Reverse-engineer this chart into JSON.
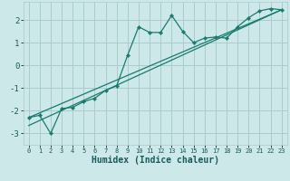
{
  "xlabel": "Humidex (Indice chaleur)",
  "bg_color": "#cce8e8",
  "grid_color": "#aacccc",
  "line_color": "#1a7a6e",
  "xlim": [
    -0.5,
    23.5
  ],
  "ylim": [
    -3.5,
    2.8
  ],
  "yticks": [
    -3,
    -2,
    -1,
    0,
    1,
    2
  ],
  "xticks": [
    0,
    1,
    2,
    3,
    4,
    5,
    6,
    7,
    8,
    9,
    10,
    11,
    12,
    13,
    14,
    15,
    16,
    17,
    18,
    19,
    20,
    21,
    22,
    23
  ],
  "main_x": [
    0,
    1,
    2,
    3,
    4,
    5,
    6,
    7,
    8,
    9,
    10,
    11,
    12,
    13,
    14,
    15,
    16,
    17,
    18,
    19,
    20,
    21,
    22,
    23
  ],
  "main_y": [
    -2.3,
    -2.2,
    -3.0,
    -1.9,
    -1.85,
    -1.6,
    -1.45,
    -1.1,
    -0.9,
    0.45,
    1.7,
    1.45,
    1.45,
    2.2,
    1.5,
    1.0,
    1.2,
    1.25,
    1.2,
    1.7,
    2.1,
    2.4,
    2.5,
    2.45
  ],
  "line2_x": [
    0,
    23
  ],
  "line2_y": [
    -2.3,
    2.45
  ],
  "line3_x": [
    0,
    23
  ],
  "line3_y": [
    -2.65,
    2.45
  ]
}
